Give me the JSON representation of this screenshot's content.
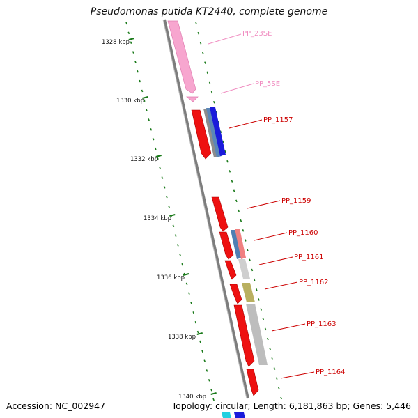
{
  "title": "Pseudomonas putida KT2440, complete genome",
  "footer": {
    "accession": "Accession: NC_002947",
    "topology": "Topology: circular; Length: 6,181,863 bp; Genes: 5,446"
  },
  "ticks": [
    {
      "label": "1328 kbp"
    },
    {
      "label": "1330 kbp"
    },
    {
      "label": "1332 kbp"
    },
    {
      "label": "1334 kbp"
    },
    {
      "label": "1336 kbp"
    },
    {
      "label": "1338 kbp"
    },
    {
      "label": "1340 kbp"
    }
  ],
  "genes": [
    {
      "label": "PP_23SE",
      "color": "#f08cc0"
    },
    {
      "label": "PP_5SE",
      "color": "#f08cc0"
    },
    {
      "label": "PP_1157",
      "color": "#cc0000"
    },
    {
      "label": "PP_1159",
      "color": "#cc0000"
    },
    {
      "label": "PP_1160",
      "color": "#cc0000"
    },
    {
      "label": "PP_1161",
      "color": "#cc0000"
    },
    {
      "label": "PP_1162",
      "color": "#cc0000"
    },
    {
      "label": "PP_1163",
      "color": "#cc0000"
    },
    {
      "label": "PP_1164",
      "color": "#cc0000"
    }
  ],
  "colors": {
    "backbone": "#8a8a8a",
    "tick": "#1a7a1a",
    "gene_red": "#ee1111",
    "rrna_pink": "#f7a6cf"
  }
}
